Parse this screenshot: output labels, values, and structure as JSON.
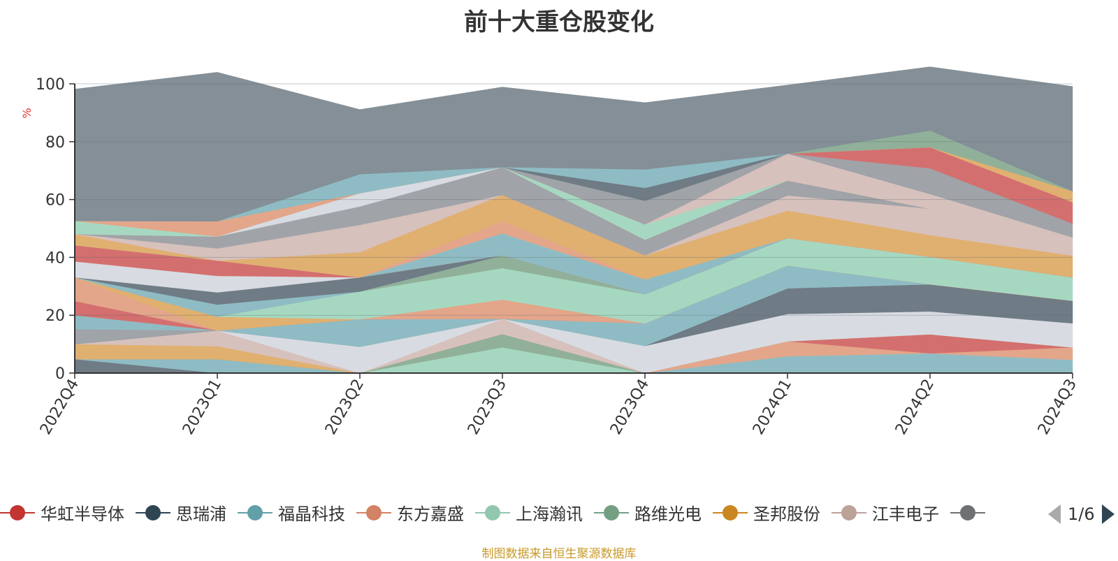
{
  "title": "前十大重仓股变化",
  "source_note": "制图数据来自恒生聚源数据库",
  "legend_pager": "1/6",
  "chart_data": {
    "type": "area",
    "stacked": true,
    "title": "前十大重仓股变化",
    "ylabel": "%",
    "xlabel": "",
    "ylim": [
      0,
      100
    ],
    "y_ticks": [
      "0",
      "20",
      "40",
      "60",
      "80",
      "100"
    ],
    "categories": [
      "2022Q4",
      "2023Q1",
      "2023Q2",
      "2023Q3",
      "2023Q4",
      "2024Q1",
      "2024Q2",
      "2024Q3"
    ],
    "legend_position": "bottom",
    "grid": true,
    "series": [
      {
        "name": "",
        "color": "#6f7b85",
        "values": [
          4.8,
          0,
          0,
          0,
          0,
          0,
          0,
          0
        ]
      },
      {
        "name": "",
        "color": "#8fbcc4",
        "values": [
          0,
          4.8,
          0,
          0,
          0,
          5.8,
          6.8,
          4.6
        ]
      },
      {
        "name": "",
        "color": "#e3a68a",
        "values": [
          0,
          0,
          0,
          0,
          0,
          5.2,
          0,
          4.3
        ]
      },
      {
        "name": "华虹半导体",
        "color": "#d46f6f",
        "values": [
          0,
          0,
          0,
          0,
          0,
          0,
          6.6,
          0
        ]
      },
      {
        "name": "",
        "color": "#a6d8c1",
        "values": [
          0,
          0,
          0,
          8.9,
          0,
          0,
          0,
          0
        ]
      },
      {
        "name": "",
        "color": "#91b099",
        "values": [
          0,
          0,
          0,
          4.6,
          0,
          0,
          0,
          0
        ]
      },
      {
        "name": "",
        "color": "#e0b070",
        "values": [
          5.2,
          4.5,
          0,
          0,
          0,
          0,
          0,
          0
        ]
      },
      {
        "name": "",
        "color": "#d7c1bd",
        "values": [
          0,
          5.4,
          0,
          5.3,
          0,
          0,
          0,
          0
        ]
      },
      {
        "name": "",
        "color": "#d8dce2",
        "values": [
          0,
          0,
          9.1,
          0,
          9.4,
          9.4,
          7.9,
          8.3
        ]
      },
      {
        "name": "",
        "color": "#6f7b85",
        "values": [
          0,
          0,
          0,
          0,
          0,
          8.9,
          9.4,
          7.8
        ]
      },
      {
        "name": "",
        "color": "#a0a3a7",
        "values": [
          5.2,
          0,
          0,
          0,
          0,
          0,
          0,
          0
        ]
      },
      {
        "name": "",
        "color": "#8fbcc4",
        "values": [
          4.8,
          0,
          9.5,
          0,
          7.8,
          7.9,
          0,
          0
        ]
      },
      {
        "name": "",
        "color": "#d46f6f",
        "values": [
          4.9,
          0,
          0,
          0,
          0,
          0,
          0,
          0
        ]
      },
      {
        "name": "",
        "color": "#e3a68a",
        "values": [
          8.2,
          0,
          0,
          6.6,
          0,
          0,
          0,
          0
        ]
      },
      {
        "name": "",
        "color": "#e0b070",
        "values": [
          0,
          4.8,
          0,
          0,
          0,
          0,
          0,
          0
        ]
      },
      {
        "name": "",
        "color": "#a6d8c1",
        "values": [
          0,
          0,
          9.6,
          10.9,
          10.1,
          9.5,
          9.5,
          8.1
        ]
      },
      {
        "name": "",
        "color": "#91b099",
        "values": [
          0,
          0,
          0,
          4.4,
          0,
          0,
          0,
          0
        ]
      },
      {
        "name": "",
        "color": "#8fbcc4",
        "values": [
          0,
          4.2,
          0,
          0,
          0,
          0,
          0,
          0
        ]
      },
      {
        "name": "",
        "color": "#6f7b85",
        "values": [
          0,
          4.2,
          4.9,
          0,
          0,
          0,
          0,
          0
        ]
      },
      {
        "name": "",
        "color": "#d8dce2",
        "values": [
          5.5,
          5.7,
          0,
          0,
          0,
          0,
          0,
          0
        ]
      },
      {
        "name": "",
        "color": "#d46f6f",
        "values": [
          5.6,
          5.3,
          0,
          0,
          0,
          0,
          0,
          0
        ]
      },
      {
        "name": "",
        "color": "#8fbcc4",
        "values": [
          0,
          0,
          0,
          7.6,
          5.1,
          0,
          0,
          0
        ]
      },
      {
        "name": "",
        "color": "#e3a68a",
        "values": [
          0,
          0,
          0,
          4.2,
          0,
          0,
          0,
          0
        ]
      },
      {
        "name": "",
        "color": "#e0b070",
        "values": [
          3.9,
          0,
          8.7,
          9.1,
          8.3,
          9.5,
          7.5,
          7.5
        ]
      },
      {
        "name": "",
        "color": "#d7c1bd",
        "values": [
          0,
          4.2,
          9.4,
          0,
          0,
          5.2,
          9.1,
          6.3
        ]
      },
      {
        "name": "",
        "color": "#a0a3a7",
        "values": [
          0,
          4.1,
          6.4,
          9.6,
          5.4,
          5.2,
          0,
          0
        ]
      },
      {
        "name": "",
        "color": "#d8dce2",
        "values": [
          0,
          0,
          4.6,
          0,
          0,
          0,
          0,
          0
        ]
      },
      {
        "name": "",
        "color": "#a6d8c1",
        "values": [
          4.5,
          0,
          0,
          0,
          5.3,
          0,
          0,
          0
        ]
      },
      {
        "name": "",
        "color": "#e3a68a",
        "values": [
          0,
          5.3,
          0,
          0,
          0,
          0,
          0,
          0
        ]
      },
      {
        "name": "",
        "color": "#d7c1bd",
        "values": [
          0,
          0,
          0,
          0,
          0,
          9.3,
          5.1,
          0
        ]
      },
      {
        "name": "",
        "color": "#a0a3a7",
        "values": [
          0,
          0,
          0,
          0,
          8.2,
          0,
          0,
          0
        ]
      },
      {
        "name": "",
        "color": "#d8dce2",
        "values": [
          0,
          0,
          0,
          0,
          0,
          0,
          0,
          0
        ]
      },
      {
        "name": "",
        "color": "#a0a3a7",
        "values": [
          0,
          0,
          0,
          0,
          0,
          0,
          8.9,
          4.8
        ]
      },
      {
        "name": "",
        "color": "#d46f6f",
        "values": [
          0,
          0,
          0,
          0,
          0,
          0,
          7.3,
          7.4
        ]
      },
      {
        "name": "",
        "color": "#d7c1bd",
        "values": [
          0,
          0,
          0,
          0,
          0,
          0,
          0,
          0
        ]
      },
      {
        "name": "",
        "color": "#e0b070",
        "values": [
          0,
          0,
          0,
          0,
          0,
          0,
          0,
          3.8
        ]
      },
      {
        "name": "",
        "color": "#91b099",
        "values": [
          0,
          0,
          0,
          0,
          0,
          0,
          5.8,
          0
        ]
      },
      {
        "name": "",
        "color": "#8fbcc4",
        "values": [
          0,
          0,
          6.6,
          0,
          0,
          0,
          0,
          0
        ]
      },
      {
        "name": "",
        "color": "#6f7b85",
        "values": [
          0,
          0,
          0,
          0,
          4.4,
          0,
          0,
          0
        ]
      },
      {
        "name": "",
        "color": "#8fbcc4",
        "values": [
          0,
          0,
          0,
          0,
          6.4,
          0,
          0,
          0
        ]
      },
      {
        "name": "",
        "color": "#848f97",
        "values": [
          45.6,
          51.5,
          22.3,
          27.7,
          23.1,
          23.7,
          22.0,
          36.2
        ]
      }
    ]
  },
  "legend": [
    {
      "label": "华虹半导体",
      "color": "#c23531"
    },
    {
      "label": "思瑞浦",
      "color": "#2f4554"
    },
    {
      "label": "福晶科技",
      "color": "#61a0a8"
    },
    {
      "label": "东方嘉盛",
      "color": "#d48265"
    },
    {
      "label": "上海瀚讯",
      "color": "#91c7ae"
    },
    {
      "label": "路维光电",
      "color": "#749f83"
    },
    {
      "label": "圣邦股份",
      "color": "#ca8622"
    },
    {
      "label": "江丰电子",
      "color": "#bda29a"
    },
    {
      "label": "",
      "color": "#6e7074"
    }
  ]
}
